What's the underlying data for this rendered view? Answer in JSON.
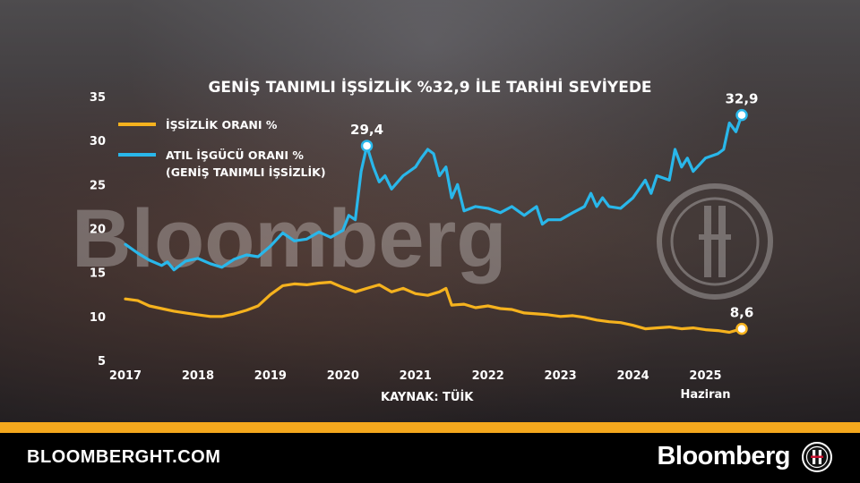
{
  "footer": {
    "site": "BLOOMBERGHT.COM",
    "brand": "Bloomberg"
  },
  "watermark": "Bloomberg",
  "chart_data": {
    "type": "line",
    "title": "GENİŞ TANIMLI İŞSİZLİK %32,9 İLE TARİHİ SEVİYEDE",
    "source": "KAYNAK: TÜİK",
    "x_ticks": [
      "2017",
      "2018",
      "2019",
      "2020",
      "2021",
      "2022",
      "2023",
      "2024",
      "2025"
    ],
    "x_last_sub": "Haziran",
    "y_ticks": [
      5,
      10,
      15,
      20,
      25,
      30,
      35
    ],
    "ylim": [
      5,
      35
    ],
    "xlim": [
      2017.0,
      2025.5
    ],
    "grid": false,
    "legend_position": "top-left",
    "annotations": [
      {
        "text": "29,4",
        "series": 1,
        "x": 2020.33,
        "y": 29.4
      },
      {
        "text": "32,9",
        "series": 1,
        "x": 2025.5,
        "y": 32.9
      },
      {
        "text": "8,6",
        "series": 0,
        "x": 2025.5,
        "y": 8.6
      }
    ],
    "series": [
      {
        "name": "İŞSİZLİK ORANI %",
        "color": "#f5b21e",
        "points": [
          [
            2017.0,
            12.0
          ],
          [
            2017.17,
            11.8
          ],
          [
            2017.33,
            11.2
          ],
          [
            2017.5,
            10.9
          ],
          [
            2017.67,
            10.6
          ],
          [
            2017.83,
            10.4
          ],
          [
            2018.0,
            10.2
          ],
          [
            2018.17,
            10.0
          ],
          [
            2018.33,
            10.0
          ],
          [
            2018.5,
            10.3
          ],
          [
            2018.67,
            10.7
          ],
          [
            2018.83,
            11.2
          ],
          [
            2019.0,
            12.5
          ],
          [
            2019.17,
            13.5
          ],
          [
            2019.33,
            13.7
          ],
          [
            2019.5,
            13.6
          ],
          [
            2019.67,
            13.8
          ],
          [
            2019.83,
            13.9
          ],
          [
            2020.0,
            13.3
          ],
          [
            2020.17,
            12.8
          ],
          [
            2020.33,
            13.2
          ],
          [
            2020.5,
            13.6
          ],
          [
            2020.67,
            12.8
          ],
          [
            2020.83,
            13.2
          ],
          [
            2021.0,
            12.6
          ],
          [
            2021.17,
            12.4
          ],
          [
            2021.33,
            12.8
          ],
          [
            2021.42,
            13.2
          ],
          [
            2021.5,
            11.3
          ],
          [
            2021.67,
            11.4
          ],
          [
            2021.83,
            11.0
          ],
          [
            2022.0,
            11.2
          ],
          [
            2022.17,
            10.9
          ],
          [
            2022.33,
            10.8
          ],
          [
            2022.5,
            10.4
          ],
          [
            2022.67,
            10.3
          ],
          [
            2022.83,
            10.2
          ],
          [
            2023.0,
            10.0
          ],
          [
            2023.17,
            10.1
          ],
          [
            2023.33,
            9.9
          ],
          [
            2023.5,
            9.6
          ],
          [
            2023.67,
            9.4
          ],
          [
            2023.83,
            9.3
          ],
          [
            2024.0,
            9.0
          ],
          [
            2024.17,
            8.6
          ],
          [
            2024.33,
            8.7
          ],
          [
            2024.5,
            8.8
          ],
          [
            2024.67,
            8.6
          ],
          [
            2024.83,
            8.7
          ],
          [
            2025.0,
            8.5
          ],
          [
            2025.17,
            8.4
          ],
          [
            2025.33,
            8.2
          ],
          [
            2025.5,
            8.6
          ]
        ]
      },
      {
        "name": "ATIL İŞGÜCÜ ORANI % (GENİŞ TANIMLI İŞSİZLİK)",
        "color": "#29b7ea",
        "points": [
          [
            2017.0,
            18.2
          ],
          [
            2017.17,
            17.2
          ],
          [
            2017.33,
            16.4
          ],
          [
            2017.5,
            15.8
          ],
          [
            2017.58,
            16.2
          ],
          [
            2017.67,
            15.3
          ],
          [
            2017.83,
            16.3
          ],
          [
            2018.0,
            16.6
          ],
          [
            2018.17,
            16.0
          ],
          [
            2018.33,
            15.6
          ],
          [
            2018.5,
            16.5
          ],
          [
            2018.67,
            17.0
          ],
          [
            2018.83,
            16.8
          ],
          [
            2019.0,
            18.0
          ],
          [
            2019.17,
            19.5
          ],
          [
            2019.33,
            18.6
          ],
          [
            2019.5,
            18.8
          ],
          [
            2019.67,
            19.6
          ],
          [
            2019.83,
            19.0
          ],
          [
            2020.0,
            19.8
          ],
          [
            2020.08,
            21.5
          ],
          [
            2020.17,
            21.0
          ],
          [
            2020.25,
            26.5
          ],
          [
            2020.33,
            29.4
          ],
          [
            2020.42,
            27.0
          ],
          [
            2020.5,
            25.3
          ],
          [
            2020.58,
            26.0
          ],
          [
            2020.67,
            24.5
          ],
          [
            2020.83,
            26.0
          ],
          [
            2021.0,
            27.0
          ],
          [
            2021.08,
            28.0
          ],
          [
            2021.17,
            29.0
          ],
          [
            2021.25,
            28.5
          ],
          [
            2021.33,
            26.0
          ],
          [
            2021.42,
            27.0
          ],
          [
            2021.5,
            23.5
          ],
          [
            2021.58,
            25.0
          ],
          [
            2021.67,
            22.0
          ],
          [
            2021.83,
            22.5
          ],
          [
            2022.0,
            22.3
          ],
          [
            2022.17,
            21.8
          ],
          [
            2022.33,
            22.5
          ],
          [
            2022.5,
            21.5
          ],
          [
            2022.67,
            22.5
          ],
          [
            2022.75,
            20.5
          ],
          [
            2022.83,
            21.0
          ],
          [
            2023.0,
            21.0
          ],
          [
            2023.17,
            21.8
          ],
          [
            2023.33,
            22.5
          ],
          [
            2023.42,
            24.0
          ],
          [
            2023.5,
            22.5
          ],
          [
            2023.58,
            23.5
          ],
          [
            2023.67,
            22.5
          ],
          [
            2023.83,
            22.3
          ],
          [
            2024.0,
            23.5
          ],
          [
            2024.17,
            25.5
          ],
          [
            2024.25,
            24.0
          ],
          [
            2024.33,
            26.0
          ],
          [
            2024.5,
            25.5
          ],
          [
            2024.58,
            29.0
          ],
          [
            2024.67,
            27.0
          ],
          [
            2024.75,
            28.0
          ],
          [
            2024.83,
            26.5
          ],
          [
            2025.0,
            28.0
          ],
          [
            2025.17,
            28.5
          ],
          [
            2025.25,
            29.0
          ],
          [
            2025.33,
            32.0
          ],
          [
            2025.42,
            31.0
          ],
          [
            2025.5,
            32.9
          ]
        ]
      }
    ]
  }
}
